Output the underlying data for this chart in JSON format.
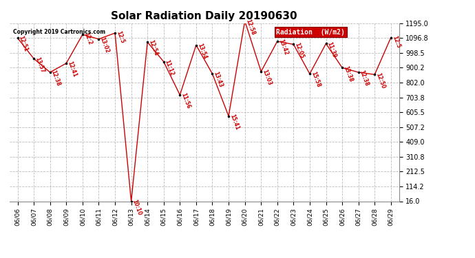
{
  "title": "Solar Radiation Daily 20190630",
  "copyright_text": "Copyright 2019 Cartronics.com",
  "legend_label": "Radiation  (W/m2)",
  "dates": [
    "06/06",
    "06/07",
    "06/08",
    "06/09",
    "06/10",
    "06/11",
    "06/12",
    "06/13",
    "06/14",
    "06/15",
    "06/16",
    "06/17",
    "06/18",
    "06/19",
    "06/20",
    "06/21",
    "06/22",
    "06/23",
    "06/24",
    "06/25",
    "06/26",
    "06/27",
    "06/28",
    "06/29"
  ],
  "values": [
    1097,
    960,
    870,
    930,
    1120,
    1090,
    1130,
    16,
    1070,
    940,
    720,
    1050,
    860,
    580,
    1210,
    875,
    1075,
    1055,
    860,
    1060,
    900,
    870,
    855,
    1100
  ],
  "time_labels": [
    "12:51",
    "13:57",
    "12:38",
    "12:41",
    "12:2",
    "13:02",
    "12:5",
    "10:10",
    "12:54",
    "11:12",
    "11:56",
    "13:54",
    "13:43",
    "15:41",
    "12:58",
    "13:03",
    "13:42",
    "12:05",
    "15:58",
    "11:39",
    "13:38",
    "12:38",
    "12:50",
    "12:5"
  ],
  "line_color": "#cc0000",
  "dot_color": "#000000",
  "grid_color": "#bbbbbb",
  "bg_color": "#ffffff",
  "legend_bg": "#cc0000",
  "legend_text_color": "#ffffff",
  "copyright_color": "#000000",
  "title_color": "#000000",
  "label_color": "#cc0000",
  "ymin": 16.0,
  "ymax": 1195.0,
  "yticks": [
    16.0,
    114.2,
    212.5,
    310.8,
    409.0,
    507.2,
    605.5,
    703.8,
    802.0,
    900.2,
    998.5,
    1096.8,
    1195.0
  ]
}
